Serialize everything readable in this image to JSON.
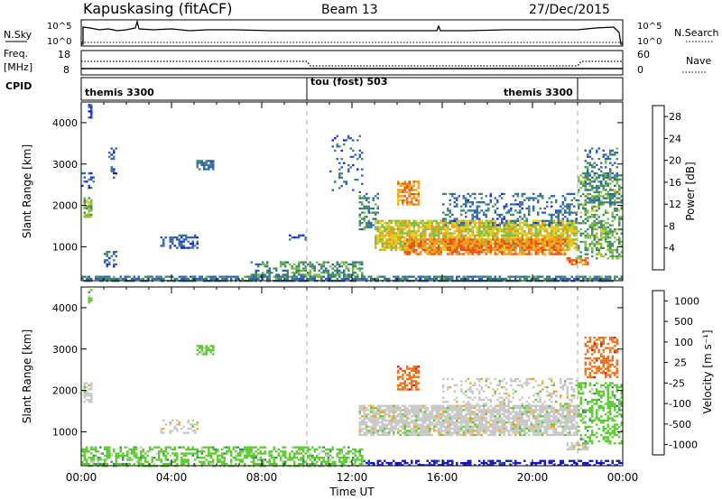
{
  "header": {
    "station": "Kapuskasing (fitACF)",
    "beam": "Beam 13",
    "date": "27/Dec/2015"
  },
  "summary": {
    "nsky_label": "N.Sky",
    "nsearch_label": "N.Search",
    "nsky_ticks": [
      "10^5",
      "10^0"
    ],
    "nsearch_ticks": [
      "10^5",
      "10^0"
    ],
    "freq_label": "Freq.",
    "freq_unit": "[MHz]",
    "freq_ticks": [
      "18",
      "8"
    ],
    "nave_label": "Nave",
    "nave_ticks": [
      "60",
      "0"
    ],
    "cpid_label": "CPID",
    "cpid_segments": [
      {
        "name": "themis 3300",
        "start_hour": 0,
        "end_hour": 10
      },
      {
        "name": "tou (fost) 503",
        "start_hour": 10,
        "end_hour": 22
      },
      {
        "name": "themis 3300",
        "start_hour": 22,
        "end_hour": 24
      }
    ]
  },
  "chart_data": [
    {
      "type": "heatmap",
      "title": "",
      "ylabel": "Slant Range [km]",
      "xlabel": "",
      "x_range_hours": [
        0,
        24
      ],
      "ylim": [
        180,
        4500
      ],
      "yticks": [
        1000,
        2000,
        3000,
        4000
      ],
      "colorbar": {
        "label": "Power [dB]",
        "ticks": [
          4,
          8,
          12,
          16,
          20,
          24,
          28
        ],
        "range": [
          0,
          30
        ],
        "colors": [
          "#1a1aff",
          "#2e5fbf",
          "#3d8a6a",
          "#7abf45",
          "#e6cc1a",
          "#f59a1a",
          "#e8501a",
          "#e01414"
        ]
      },
      "regions": [
        {
          "t0": 0.0,
          "t1": 24.0,
          "r0": 180,
          "r1": 300,
          "level": 8,
          "density": 0.75
        },
        {
          "t0": 0.1,
          "t1": 0.5,
          "r0": 1700,
          "r1": 2200,
          "level": 13,
          "density": 0.75
        },
        {
          "t0": 0.0,
          "t1": 0.6,
          "r0": 2400,
          "r1": 2800,
          "level": 6,
          "density": 0.35
        },
        {
          "t0": 0.3,
          "t1": 0.5,
          "r0": 4100,
          "r1": 4450,
          "level": 5,
          "density": 0.5
        },
        {
          "t0": 1.2,
          "t1": 1.6,
          "r0": 2600,
          "r1": 3400,
          "level": 6,
          "density": 0.3
        },
        {
          "t0": 1.0,
          "t1": 1.6,
          "r0": 500,
          "r1": 900,
          "level": 6,
          "density": 0.45
        },
        {
          "t0": 3.5,
          "t1": 5.2,
          "r0": 950,
          "r1": 1300,
          "level": 6,
          "density": 0.45
        },
        {
          "t0": 5.1,
          "t1": 5.9,
          "r0": 2850,
          "r1": 3100,
          "level": 7,
          "density": 0.65
        },
        {
          "t0": 7.5,
          "t1": 12.5,
          "r0": 250,
          "r1": 650,
          "level": 10,
          "density": 0.5
        },
        {
          "t0": 9.2,
          "t1": 10.0,
          "r0": 1150,
          "r1": 1300,
          "level": 6,
          "density": 0.5
        },
        {
          "t0": 11.0,
          "t1": 12.5,
          "r0": 2300,
          "r1": 3700,
          "level": 6,
          "density": 0.12
        },
        {
          "t0": 12.3,
          "t1": 13.2,
          "r0": 1400,
          "r1": 2300,
          "level": 9,
          "density": 0.45
        },
        {
          "t0": 13.0,
          "t1": 22.0,
          "r0": 900,
          "r1": 1650,
          "level": 17,
          "density": 0.8
        },
        {
          "t0": 14.3,
          "t1": 21.5,
          "r0": 800,
          "r1": 1200,
          "level": 23,
          "density": 0.8
        },
        {
          "t0": 14.0,
          "t1": 15.0,
          "r0": 2000,
          "r1": 2600,
          "level": 22,
          "density": 0.65
        },
        {
          "t0": 16.0,
          "t1": 22.0,
          "r0": 1500,
          "r1": 2300,
          "level": 7,
          "density": 0.3
        },
        {
          "t0": 21.5,
          "t1": 22.5,
          "r0": 550,
          "r1": 750,
          "level": 24,
          "density": 0.7
        },
        {
          "t0": 22.0,
          "t1": 24.0,
          "r0": 700,
          "r1": 2800,
          "level": 12,
          "density": 0.45
        },
        {
          "t0": 22.3,
          "t1": 23.8,
          "r0": 2000,
          "r1": 3400,
          "level": 8,
          "density": 0.35
        }
      ]
    },
    {
      "type": "heatmap",
      "title": "",
      "ylabel": "Slant Range [km]",
      "xlabel": "Time UT",
      "x_range_hours": [
        0,
        24
      ],
      "xticks": [
        "00:00",
        "04:00",
        "08:00",
        "12:00",
        "16:00",
        "20:00",
        "00:00"
      ],
      "ylim": [
        180,
        4500
      ],
      "yticks": [
        1000,
        2000,
        3000,
        4000
      ],
      "colorbar": {
        "label": "Velocity [m s⁻¹]",
        "ticks": [
          "1000",
          "500",
          "100",
          "25",
          "-25",
          "-100",
          "-500",
          "-1000"
        ],
        "range": [
          -1250,
          1250
        ],
        "colors": [
          "#1414c8",
          "#2e5fbf",
          "#3d8a6a",
          "#5bcc2e",
          "#c8c8c8",
          "#f5a51a",
          "#f06e1a",
          "#e01414"
        ]
      },
      "regions": [
        {
          "t0": 0.0,
          "t1": 12.5,
          "r0": 180,
          "r1": 650,
          "level": 3,
          "density": 0.55
        },
        {
          "t0": 12.5,
          "t1": 24.0,
          "r0": 180,
          "r1": 320,
          "level": 0,
          "density": 0.5
        },
        {
          "t0": 0.1,
          "t1": 0.5,
          "r0": 1700,
          "r1": 2200,
          "level": 4,
          "density": 0.7
        },
        {
          "t0": 0.3,
          "t1": 0.5,
          "r0": 4100,
          "r1": 4450,
          "level": 3,
          "density": 0.5
        },
        {
          "t0": 3.5,
          "t1": 5.2,
          "r0": 950,
          "r1": 1300,
          "level": 4,
          "density": 0.35
        },
        {
          "t0": 5.1,
          "t1": 5.9,
          "r0": 2850,
          "r1": 3100,
          "level": 3,
          "density": 0.6
        },
        {
          "t0": 12.3,
          "t1": 22.0,
          "r0": 900,
          "r1": 1650,
          "level": 4,
          "density": 0.8
        },
        {
          "t0": 16.0,
          "t1": 22.0,
          "r0": 1500,
          "r1": 2300,
          "level": 4,
          "density": 0.3
        },
        {
          "t0": 14.0,
          "t1": 15.0,
          "r0": 2000,
          "r1": 2600,
          "level": 6,
          "density": 0.6
        },
        {
          "t0": 21.5,
          "t1": 22.5,
          "r0": 550,
          "r1": 750,
          "level": 4,
          "density": 0.6
        },
        {
          "t0": 22.3,
          "t1": 23.8,
          "r0": 2300,
          "r1": 3300,
          "level": 6,
          "density": 0.55
        },
        {
          "t0": 22.0,
          "t1": 24.0,
          "r0": 700,
          "r1": 2200,
          "level": 3,
          "density": 0.45
        }
      ]
    }
  ]
}
